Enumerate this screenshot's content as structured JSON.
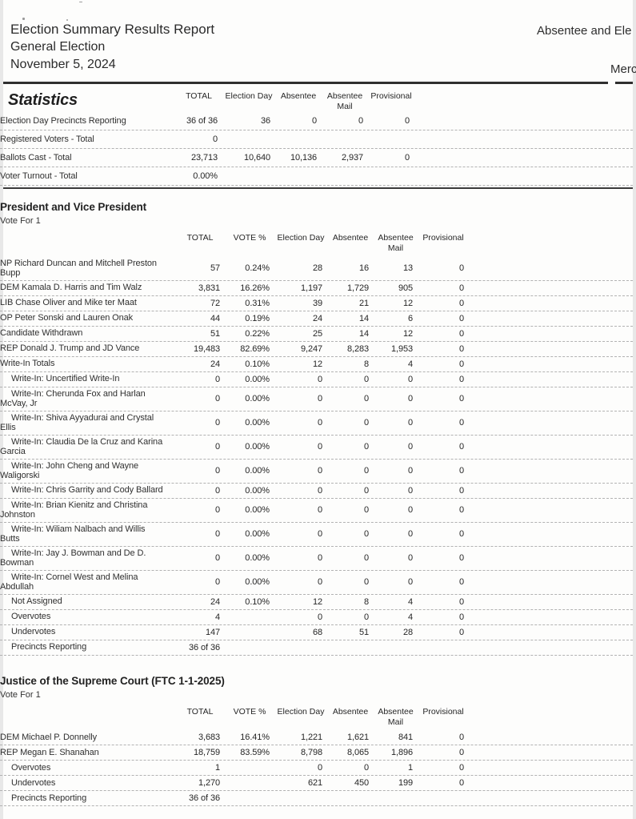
{
  "page": {
    "title": "Election Summary Results Report",
    "subtitle": "General Election",
    "date": "November 5, 2024",
    "right_header_line1": "Absentee and Ele",
    "right_header_line2": "Merc"
  },
  "statistics": {
    "heading": "Statistics",
    "columns": [
      "TOTAL",
      "Election Day",
      "Absentee",
      "Absentee\nMail",
      "Provisional"
    ],
    "rows": [
      {
        "label": "Election Day Precincts Reporting",
        "indent": false,
        "values": [
          "36 of 36",
          "36",
          "0",
          "0",
          "0"
        ]
      },
      {
        "label": "Registered Voters - Total",
        "indent": false,
        "values": [
          "0",
          "",
          "",
          "",
          ""
        ]
      },
      {
        "label": "Ballots Cast - Total",
        "indent": false,
        "values": [
          "23,713",
          "10,640",
          "10,136",
          "2,937",
          "0"
        ]
      },
      {
        "label": "Voter Turnout - Total",
        "indent": false,
        "values": [
          "0.00%",
          "",
          "",
          "",
          ""
        ]
      }
    ]
  },
  "contests": [
    {
      "title": "President and Vice President",
      "vote_for": "Vote For 1",
      "columns": [
        "TOTAL",
        "VOTE %",
        "Election Day",
        "Absentee",
        "Absentee\nMail",
        "Provisional"
      ],
      "rows": [
        {
          "label": "NP Richard Duncan and Mitchell Preston\nBupp",
          "indent": false,
          "values": [
            "57",
            "0.24%",
            "28",
            "16",
            "13",
            "0"
          ]
        },
        {
          "label": "DEM Kamala D. Harris and Tim Walz",
          "indent": false,
          "values": [
            "3,831",
            "16.26%",
            "1,197",
            "1,729",
            "905",
            "0"
          ]
        },
        {
          "label": "LIB Chase Oliver and Mike ter Maat",
          "indent": false,
          "values": [
            "72",
            "0.31%",
            "39",
            "21",
            "12",
            "0"
          ]
        },
        {
          "label": "OP Peter Sonski and Lauren Onak",
          "indent": false,
          "values": [
            "44",
            "0.19%",
            "24",
            "14",
            "6",
            "0"
          ]
        },
        {
          "label": "Candidate Withdrawn",
          "indent": false,
          "values": [
            "51",
            "0.22%",
            "25",
            "14",
            "12",
            "0"
          ]
        },
        {
          "label": "REP Donald J. Trump and JD Vance",
          "indent": false,
          "values": [
            "19,483",
            "82.69%",
            "9,247",
            "8,283",
            "1,953",
            "0"
          ]
        },
        {
          "label": "Write-In Totals",
          "indent": false,
          "values": [
            "24",
            "0.10%",
            "12",
            "8",
            "4",
            "0"
          ]
        },
        {
          "label": "Write-In: Uncertified Write-In",
          "indent": true,
          "values": [
            "0",
            "0.00%",
            "0",
            "0",
            "0",
            "0"
          ]
        },
        {
          "label": "Write-In: Cherunda Fox and Harlan\nMcVay, Jr",
          "indent": true,
          "values": [
            "0",
            "0.00%",
            "0",
            "0",
            "0",
            "0"
          ]
        },
        {
          "label": "Write-In: Shiva Ayyadurai and Crystal\nEllis",
          "indent": true,
          "values": [
            "0",
            "0.00%",
            "0",
            "0",
            "0",
            "0"
          ]
        },
        {
          "label": "Write-In: Claudia De la Cruz and Karina\nGarcia",
          "indent": true,
          "values": [
            "0",
            "0.00%",
            "0",
            "0",
            "0",
            "0"
          ]
        },
        {
          "label": "Write-In: John Cheng and Wayne\nWaligorski",
          "indent": true,
          "values": [
            "0",
            "0.00%",
            "0",
            "0",
            "0",
            "0"
          ]
        },
        {
          "label": "Write-In: Chris Garrity and Cody Ballard",
          "indent": true,
          "values": [
            "0",
            "0.00%",
            "0",
            "0",
            "0",
            "0"
          ]
        },
        {
          "label": "Write-In: Brian Kienitz and Christina\nJohnston",
          "indent": true,
          "values": [
            "0",
            "0.00%",
            "0",
            "0",
            "0",
            "0"
          ]
        },
        {
          "label": "Write-In: Wiliam Nalbach and Willis\nButts",
          "indent": true,
          "values": [
            "0",
            "0.00%",
            "0",
            "0",
            "0",
            "0"
          ]
        },
        {
          "label": "Write-In: Jay J. Bowman and De D.\nBowman",
          "indent": true,
          "values": [
            "0",
            "0.00%",
            "0",
            "0",
            "0",
            "0"
          ]
        },
        {
          "label": "Write-In: Cornel West and Melina\nAbdullah",
          "indent": true,
          "values": [
            "0",
            "0.00%",
            "0",
            "0",
            "0",
            "0"
          ]
        },
        {
          "label": "Not Assigned",
          "indent": true,
          "values": [
            "24",
            "0.10%",
            "12",
            "8",
            "4",
            "0"
          ]
        },
        {
          "label": "Overvotes",
          "indent": true,
          "values": [
            "4",
            "",
            "0",
            "0",
            "4",
            "0"
          ]
        },
        {
          "label": "Undervotes",
          "indent": true,
          "values": [
            "147",
            "",
            "68",
            "51",
            "28",
            "0"
          ]
        },
        {
          "label": "Precincts Reporting",
          "indent": true,
          "values": [
            "36 of 36",
            "",
            "",
            "",
            "",
            ""
          ]
        }
      ]
    },
    {
      "title": "Justice of the Supreme Court (FTC 1-1-2025)",
      "vote_for": "Vote For 1",
      "columns": [
        "TOTAL",
        "VOTE %",
        "Election Day",
        "Absentee",
        "Absentee\nMail",
        "Provisional"
      ],
      "rows": [
        {
          "label": "DEM Michael P. Donnelly",
          "indent": false,
          "values": [
            "3,683",
            "16.41%",
            "1,221",
            "1,621",
            "841",
            "0"
          ]
        },
        {
          "label": "REP Megan E. Shanahan",
          "indent": false,
          "values": [
            "18,759",
            "83.59%",
            "8,798",
            "8,065",
            "1,896",
            "0"
          ]
        },
        {
          "label": "Overvotes",
          "indent": true,
          "values": [
            "1",
            "",
            "0",
            "0",
            "1",
            "0"
          ]
        },
        {
          "label": "Undervotes",
          "indent": true,
          "values": [
            "1,270",
            "",
            "621",
            "450",
            "199",
            "0"
          ]
        },
        {
          "label": "Precincts Reporting",
          "indent": true,
          "values": [
            "36 of 36",
            "",
            "",
            "",
            "",
            ""
          ]
        }
      ]
    }
  ]
}
